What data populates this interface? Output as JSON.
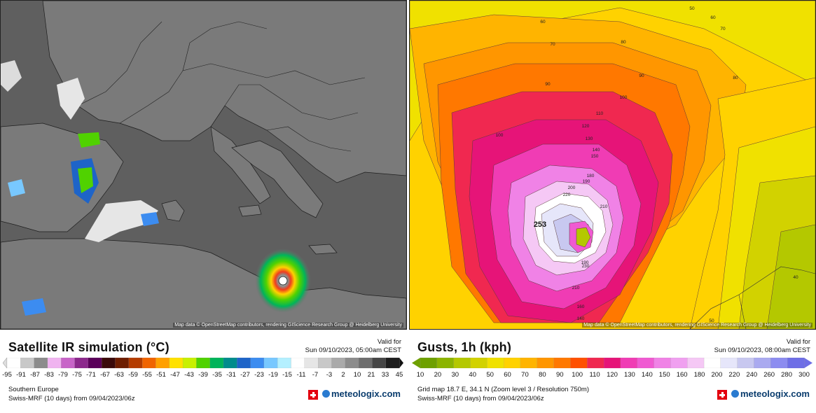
{
  "left_panel": {
    "title": "Satellite IR simulation (°C)",
    "valid_label": "Valid for",
    "valid_date": "Sun 09/10/2023, 05:00am CEST",
    "attribution": "Map data © OpenStreetMap contributors, rendering GIScience Research Group @ Heidelberg University",
    "region": "Southern Europe",
    "model_run": "Swiss-MRF (10 days)  from  09/04/2023/06z",
    "brand": "meteologix.com",
    "scale_ticks": [
      "-95",
      "-91",
      "-87",
      "-83",
      "-79",
      "-75",
      "-71",
      "-67",
      "-63",
      "-59",
      "-55",
      "-51",
      "-47",
      "-43",
      "-39",
      "-35",
      "-31",
      "-27",
      "-23",
      "-19",
      "-15",
      "-11",
      "-7",
      "-3",
      "2",
      "10",
      "21",
      "33",
      "45"
    ],
    "scale_colors": [
      "#ffffff",
      "#c8c8c8",
      "#8c8c8c",
      "#f0b4f0",
      "#c864c8",
      "#8c288c",
      "#5a005a",
      "#3a0a0a",
      "#6e1e00",
      "#b43c00",
      "#f06400",
      "#ffa000",
      "#ffe100",
      "#c8f000",
      "#50d200",
      "#00b45a",
      "#008c8c",
      "#1e64c8",
      "#3c8cf0",
      "#78c8ff",
      "#b4f0ff",
      "#ffffff",
      "#e6e6e6",
      "#c8c8c8",
      "#aaaaaa",
      "#8c8c8c",
      "#6e6e6e",
      "#464646",
      "#1e1e1e"
    ]
  },
  "right_panel": {
    "title": "Gusts, 1h (kph)",
    "valid_label": "Valid for",
    "valid_date": "Sun 09/10/2023, 08:00am CEST",
    "attribution": "Map data © OpenStreetMap contributors, rendering GIScience Research Group @ Heidelberg University",
    "grid_info": "Grid map 18.7 E, 34.1 N (Zoom level 3 / Resolution 750m)",
    "model_run": "Swiss-MRF (10 days)  from  09/04/2023/06z",
    "brand": "meteologix.com",
    "scale_ticks": [
      "10",
      "20",
      "30",
      "40",
      "50",
      "60",
      "70",
      "80",
      "90",
      "100",
      "110",
      "120",
      "130",
      "140",
      "150",
      "160",
      "180",
      "200",
      "220",
      "240",
      "260",
      "280",
      "300"
    ],
    "scale_colors": [
      "#6ea000",
      "#8cb400",
      "#b4c800",
      "#d2d200",
      "#f0e100",
      "#ffd200",
      "#ffb400",
      "#ff9600",
      "#ff7800",
      "#ff5000",
      "#f02850",
      "#e61478",
      "#f03cb4",
      "#f05ad2",
      "#f082e6",
      "#f0a0f0",
      "#f5c8f5",
      "#ffffff",
      "#e6e6fa",
      "#c8c8f0",
      "#aaaaf0",
      "#8c8cf0",
      "#6e6ee6"
    ],
    "isolines": [
      {
        "label": "50",
        "type": "iso"
      },
      {
        "label": "60",
        "type": "iso"
      },
      {
        "label": "60",
        "type": "iso"
      },
      {
        "label": "70",
        "type": "iso"
      },
      {
        "label": "70",
        "type": "iso"
      },
      {
        "label": "80",
        "type": "iso"
      },
      {
        "label": "80",
        "type": "iso"
      },
      {
        "label": "90",
        "type": "iso"
      },
      {
        "label": "90",
        "type": "iso"
      },
      {
        "label": "100",
        "type": "iso"
      },
      {
        "label": "100",
        "type": "iso"
      },
      {
        "label": "110",
        "type": "iso"
      },
      {
        "label": "120",
        "type": "iso"
      },
      {
        "label": "130",
        "type": "iso"
      },
      {
        "label": "140",
        "type": "iso"
      },
      {
        "label": "150",
        "type": "iso"
      },
      {
        "label": "180",
        "type": "iso"
      },
      {
        "label": "190",
        "type": "iso"
      },
      {
        "label": "200",
        "type": "iso"
      },
      {
        "label": "220",
        "type": "iso"
      },
      {
        "label": "210",
        "type": "iso"
      },
      {
        "label": "253",
        "type": "max"
      },
      {
        "label": "190",
        "type": "iso"
      },
      {
        "label": "230",
        "type": "iso"
      },
      {
        "label": "210",
        "type": "iso"
      },
      {
        "label": "160",
        "type": "iso"
      },
      {
        "label": "140",
        "type": "iso"
      },
      {
        "label": "40",
        "type": "iso"
      },
      {
        "label": "50",
        "type": "iso"
      }
    ]
  }
}
